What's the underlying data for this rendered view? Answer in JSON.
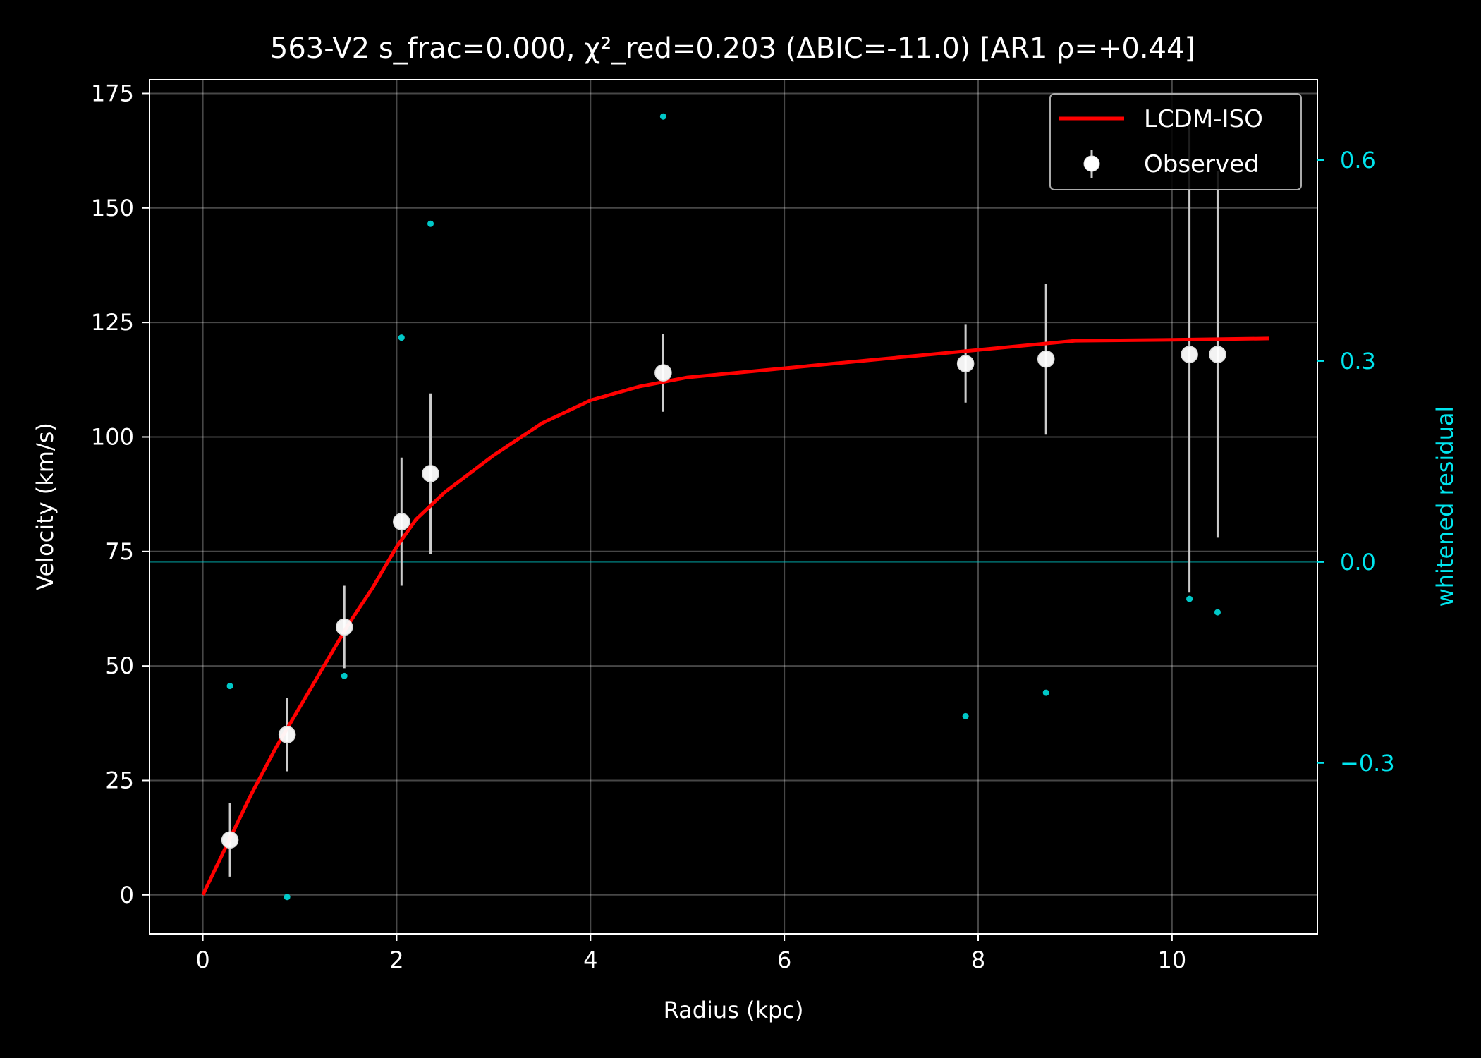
{
  "chart_data": {
    "type": "scatter",
    "title": "563-V2  s_frac=0.000, χ²_red=0.203  (ΔBIC=-11.0) [AR1 ρ=+0.44]",
    "xlabel": "Radius (kpc)",
    "ylabel": "Velocity (km/s)",
    "ylabel_right": "whitened residual",
    "xlim": [
      -0.55,
      11.5
    ],
    "ylim": [
      -8.5,
      178
    ],
    "ylim_right": [
      -0.555,
      0.72
    ],
    "xticks": [
      0,
      2,
      4,
      6,
      8,
      10
    ],
    "xtick_labels": [
      "0",
      "2",
      "4",
      "6",
      "8",
      "10"
    ],
    "yticks": [
      0,
      25,
      50,
      75,
      100,
      125,
      150,
      175
    ],
    "ytick_labels": [
      "0",
      "25",
      "50",
      "75",
      "100",
      "125",
      "150",
      "175"
    ],
    "yticks_right": [
      -0.3,
      0.0,
      0.3,
      0.6
    ],
    "ytick_right_labels": [
      "−0.3",
      "0.0",
      "0.3",
      "0.6"
    ],
    "grid": true,
    "legend_position": "top-right",
    "colors": {
      "background": "#000000",
      "model": "#ff0000",
      "observed": "#ffffff",
      "errorbar": "#cccccc",
      "residual": "#00c8c8",
      "right_axis": "#00e5ee"
    },
    "series": [
      {
        "name": "LCDM-ISO",
        "kind": "line",
        "x": [
          0,
          0.25,
          0.5,
          0.75,
          1.0,
          1.25,
          1.5,
          1.75,
          2.0,
          2.2,
          2.5,
          3.0,
          3.5,
          4.0,
          4.5,
          5.0,
          5.5,
          6.0,
          7.0,
          8.0,
          8.5,
          9.0,
          10.0,
          11.0
        ],
        "y": [
          0,
          11,
          22,
          32,
          41,
          50,
          59,
          67,
          76,
          82,
          88,
          96,
          103,
          108,
          111,
          113,
          114,
          115,
          117,
          119,
          120,
          121,
          121.2,
          121.5
        ]
      },
      {
        "name": "Observed",
        "kind": "errorbar",
        "x": [
          0.28,
          0.87,
          1.46,
          2.05,
          2.35,
          4.75,
          7.87,
          8.7,
          10.18,
          10.47
        ],
        "y": [
          12,
          35,
          58.5,
          81.5,
          92,
          114,
          116,
          117,
          118,
          118
        ],
        "yerr": [
          8,
          8,
          9,
          14,
          17.5,
          8.5,
          8.5,
          16.5,
          52,
          40
        ]
      },
      {
        "kind": "residual",
        "axis": "right",
        "x": [
          0.28,
          0.87,
          1.46,
          2.05,
          2.35,
          4.75,
          7.87,
          8.7,
          10.18,
          10.47
        ],
        "y": [
          -0.185,
          -0.5,
          -0.17,
          0.335,
          0.505,
          0.665,
          -0.23,
          -0.195,
          -0.055,
          -0.075
        ]
      }
    ]
  }
}
